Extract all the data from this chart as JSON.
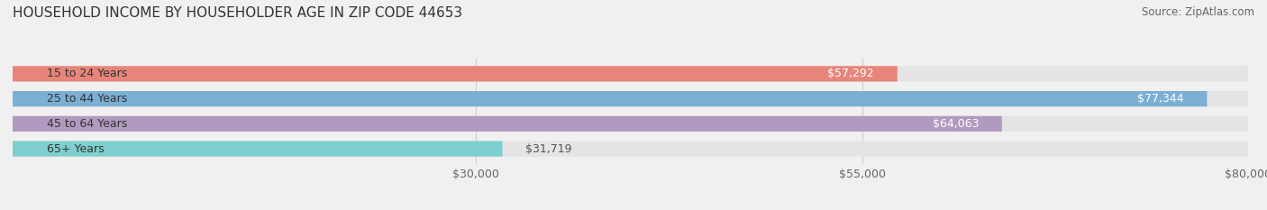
{
  "title": "HOUSEHOLD INCOME BY HOUSEHOLDER AGE IN ZIP CODE 44653",
  "source": "Source: ZipAtlas.com",
  "categories": [
    "15 to 24 Years",
    "25 to 44 Years",
    "45 to 64 Years",
    "65+ Years"
  ],
  "values": [
    57292,
    77344,
    64063,
    31719
  ],
  "bar_colors": [
    "#e8857a",
    "#7bafd4",
    "#b09abf",
    "#7ecfcf"
  ],
  "background_color": "#f0f0f0",
  "bar_background_color": "#e4e4e4",
  "xlim": [
    0,
    80000
  ],
  "xticks": [
    30000,
    55000,
    80000
  ],
  "xtick_labels": [
    "$30,000",
    "$55,000",
    "$80,000"
  ],
  "value_labels": [
    "$57,292",
    "$77,344",
    "$64,063",
    "$31,719"
  ],
  "bar_height": 0.62,
  "title_fontsize": 11,
  "source_fontsize": 8.5,
  "label_fontsize": 9,
  "tick_fontsize": 9
}
